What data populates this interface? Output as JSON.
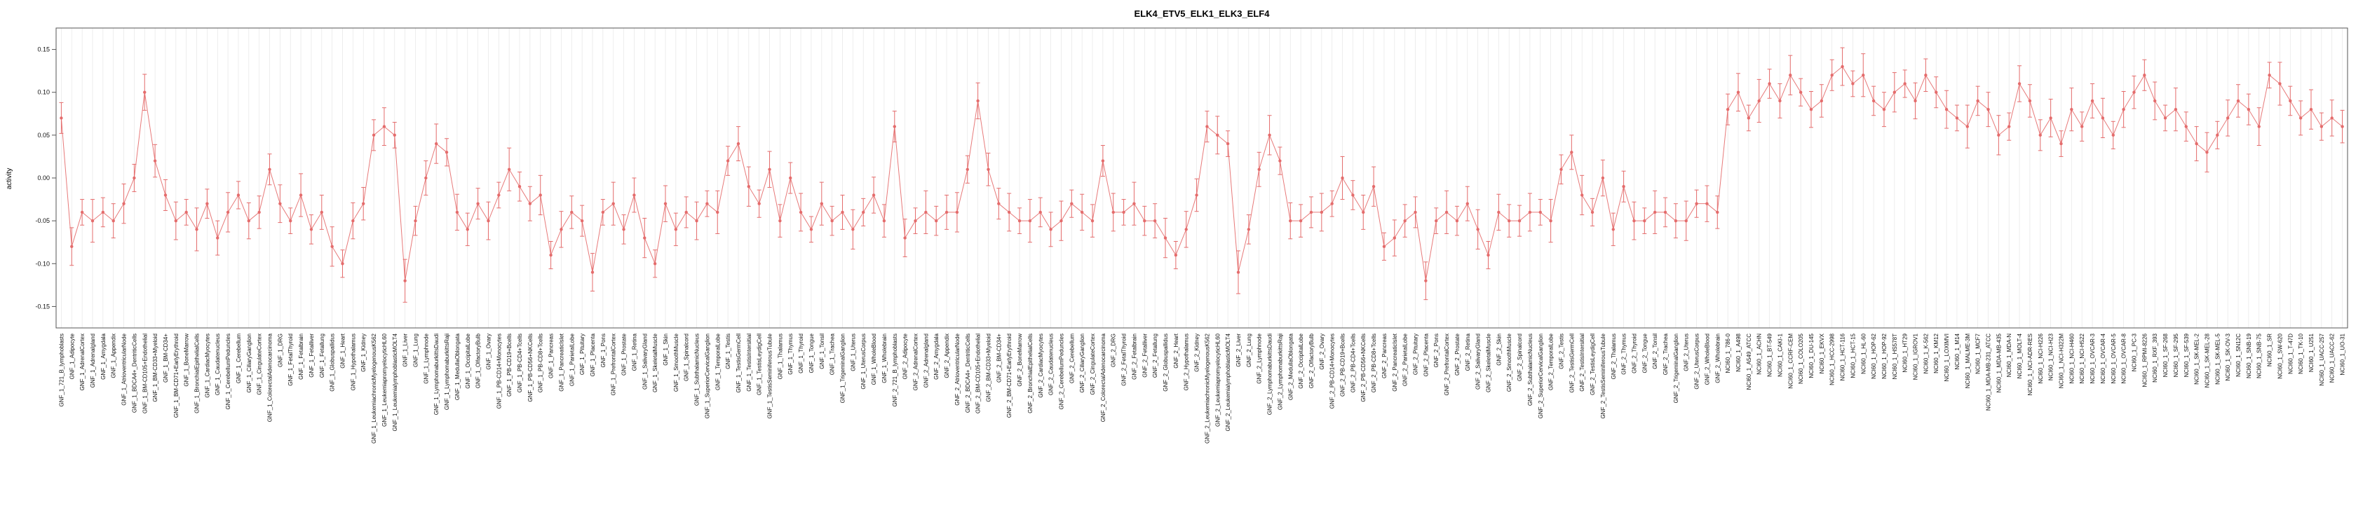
{
  "chart_data": {
    "type": "scatter",
    "title": "ELK4_ETV5_ELK1_ELK3_ELF4",
    "xlabel": "",
    "ylabel": "activity",
    "ylim": [
      -0.175,
      0.175
    ],
    "yticks": [
      -0.15,
      -0.1,
      -0.05,
      0.0,
      0.05,
      0.1,
      0.15
    ],
    "point_color": "#e46c6c",
    "grid_color": "#e6e6e6",
    "box_color": "#555555",
    "grid": true,
    "legend": "none",
    "categories": [
      "GNF_1_721_B_lymphoblasts",
      "GNF_1_Adipocyte",
      "GNF_1_AdrenalCortex",
      "GNF_1_Adrenalgland",
      "GNF_1_Amygdala",
      "GNF_1_Appendix",
      "GNF_1_AtrioventricularNode",
      "GNF_1_BDCA4+_DentriticCells",
      "GNF_1_BM-CD105+Endothelial",
      "GNF_1_BM-CD33+Myeloid",
      "GNF_1_BM-CD34+",
      "GNF_1_BM-CD71+EarlyErythroid",
      "GNF_1_BoneMarrow",
      "GNF_1_BronchialEpithelialCells",
      "GNF_1_CardiacMyocytes",
      "GNF_1_Caudatenucleus",
      "GNF_1_CerebellumPeduncles",
      "GNF_1_Cerebellum",
      "GNF_1_CiliaryGanglion",
      "GNF_1_CingulateCortex",
      "GNF_1_ColorectalAdenocarcinoma",
      "GNF_1_DRG",
      "GNF_1_FetalThyroid",
      "GNF_1_Fetalbrain",
      "GNF_1_Fetalliver",
      "GNF_1_Fetallung",
      "GNF_1_Globuspallidus",
      "GNF_1_Heart",
      "GNF_1_Hypothalamus",
      "GNF_1_Kidney",
      "GNF_1_LeukemiachronicMyelogenousK562",
      "GNF_1_LeukemiapromyelocyticHL60",
      "GNF_1_LeukemialymphoblasticMOLT4",
      "GNF_1_Liver",
      "GNF_1_Lung",
      "GNF_1_Lymphnode",
      "GNF_1_LymphomaburkittsDaudi",
      "GNF_1_LymphomaburkittsRaji",
      "GNF_1_MedullaOblongata",
      "GNF_1_OccipitalLobe",
      "GNF_1_OlfactoryBulb",
      "GNF_1_Ovary",
      "GNF_1_PB-CD14+Monocytes",
      "GNF_1_PB-CD19+Bcells",
      "GNF_1_PB-CD4+Tcells",
      "GNF_1_PB-CD56+NKCells",
      "GNF_1_PB-CD8+Tcells",
      "GNF_1_Pancreas",
      "GNF_1_PancreaticIslet",
      "GNF_1_ParietalLobe",
      "GNF_1_Pituitary",
      "GNF_1_Placenta",
      "GNF_1_Pons",
      "GNF_1_PrefrontalCortex",
      "GNF_1_Prostate",
      "GNF_1_Retina",
      "GNF_1_SalivaryGland",
      "GNF_1_SkeletalMuscle",
      "GNF_1_Skin",
      "GNF_1_SmoothMuscle",
      "GNF_1_Spinalcord",
      "GNF_1_SubthalamicNucleus",
      "GNF_1_SuperiorCervicalGanglion",
      "GNF_1_TemporalLobe",
      "GNF_1_Testis",
      "GNF_1_TestisGermCell",
      "GNF_1_TestisIntersitial",
      "GNF_1_TestisLeydigCell",
      "GNF_1_TestisSeminiferousTubule",
      "GNF_1_Thalamus",
      "GNF_1_Thymus",
      "GNF_1_Thyroid",
      "GNF_1_Tongue",
      "GNF_1_Tonsil",
      "GNF_1_Trachea",
      "GNF_1_TrigeminalGanglion",
      "GNF_1_Uterus",
      "GNF_1_UterusCorpus",
      "GNF_1_WholeBlood",
      "GNF_1_Wholebrain",
      "GNF_2_721_B_lymphoblasts",
      "GNF_2_Adipocyte",
      "GNF_2_AdrenalCortex",
      "GNF_2_Adrenalgland",
      "GNF_2_Amygdala",
      "GNF_2_Appendix",
      "GNF_2_AtrioventricularNode",
      "GNF_2_BDCA4+_DentriticCells",
      "GNF_2_BM-CD105+Endothelial",
      "GNF_2_BM-CD33+Myeloid",
      "GNF_2_BM-CD34+",
      "GNF_2_BM-CD71+EarlyErythroid",
      "GNF_2_BoneMarrow",
      "GNF_2_BronchialEpithelialCells",
      "GNF_2_CardiacMyocytes",
      "GNF_2_Caudatenucleus",
      "GNF_2_CerebellumPeduncles",
      "GNF_2_Cerebellum",
      "GNF_2_CiliaryGanglion",
      "GNF_2_CingulateCortex",
      "GNF_2_ColorectalAdenocarcinoma",
      "GNF_2_DRG",
      "GNF_2_FetalThyroid",
      "GNF_2_Fetalbrain",
      "GNF_2_Fetalliver",
      "GNF_2_Fetallung",
      "GNF_2_Globuspallidus",
      "GNF_2_Heart",
      "GNF_2_Hypothalamus",
      "GNF_2_Kidney",
      "GNF_2_LeukemiachronicMyelogenousK562",
      "GNF_2_LeukemiapromyelocyticHL60",
      "GNF_2_LeukemialymphoblasticMOLT4",
      "GNF_2_Liver",
      "GNF_2_Lung",
      "GNF_2_Lymphnode",
      "GNF_2_LymphomaburkittsDaudi",
      "GNF_2_LymphomaburkittsRaji",
      "GNF_2_MedullaOblongata",
      "GNF_2_OccipitalLobe",
      "GNF_2_OlfactoryBulb",
      "GNF_2_Ovary",
      "GNF_2_PB-CD14+Monocytes",
      "GNF_2_PB-CD19+Bcells",
      "GNF_2_PB-CD4+Tcells",
      "GNF_2_PB-CD56+NKCells",
      "GNF_2_PB-CD8+Tcells",
      "GNF_2_Pancreas",
      "GNF_2_PancreaticIslet",
      "GNF_2_ParietalLobe",
      "GNF_2_Pituitary",
      "GNF_2_Placenta",
      "GNF_2_Pons",
      "GNF_2_PrefrontalCortex",
      "GNF_2_Prostate",
      "GNF_2_Retina",
      "GNF_2_SalivaryGland",
      "GNF_2_SkeletalMuscle",
      "GNF_2_Skin",
      "GNF_2_SmoothMuscle",
      "GNF_2_Spinalcord",
      "GNF_2_SubthalamicNucleus",
      "GNF_2_SuperiorCervicalGanglion",
      "GNF_2_TemporalLobe",
      "GNF_2_Testis",
      "GNF_2_TestisGermCell",
      "GNF_2_TestisIntersitial",
      "GNF_2_TestisLeydigCell",
      "GNF_2_TestisSeminiferousTubule",
      "GNF_2_Thalamus",
      "GNF_2_Thymus",
      "GNF_2_Thyroid",
      "GNF_2_Tongue",
      "GNF_2_Tonsil",
      "GNF_2_Trachea",
      "GNF_2_TrigeminalGanglion",
      "GNF_2_Uterus",
      "GNF_2_UterusCorpus",
      "GNF_2_WholeBlood",
      "GNF_2_Wholebrain",
      "NCI60_1_786-0",
      "NCI60_1_A498",
      "NCI60_1_A549_ATCC",
      "NCI60_1_ACHN",
      "NCI60_1_BT-549",
      "NCI60_1_CAKI-1",
      "NCI60_1_CCRF-CEM",
      "NCI60_1_COLO205",
      "NCI60_1_DU-145",
      "NCI60_1_EKVX",
      "NCI60_1_HCC-2998",
      "NCI60_1_HCT-116",
      "NCI60_1_HCT-15",
      "NCI60_1_HL-60",
      "NCI60_1_HOP-62",
      "NCI60_1_HOP-92",
      "NCI60_1_HS578T",
      "NCI60_1_HT29",
      "NCI60_1_IGROV1",
      "NCI60_1_K-562",
      "NCI60_1_KM12",
      "NCI60_1_LOXIMVI",
      "NCI60_1_M14",
      "NCI60_1_MALME-3M",
      "NCI60_1_MCF7",
      "NCI60_1_MDA-MB-231_ATCC",
      "NCI60_1_MDA-MB-435",
      "NCI60_1_MDA-N",
      "NCI60_1_MOLT-4",
      "NCI60_1_NCI-ADR-RES",
      "NCI60_1_NCI-H226",
      "NCI60_1_NCI-H23",
      "NCI60_1_NCI-H322M",
      "NCI60_1_NCI-H460",
      "NCI60_1_NCI-H522",
      "NCI60_1_OVCAR-3",
      "NCI60_1_OVCAR-4",
      "NCI60_1_OVCAR-5",
      "NCI60_1_OVCAR-8",
      "NCI60_1_PC-3",
      "NCI60_1_RPMI-8226",
      "NCI60_1_RXF_393",
      "NCI60_1_SF-268",
      "NCI60_1_SF-295",
      "NCI60_1_SF-539",
      "NCI60_1_SK-MEL-2",
      "NCI60_1_SK-MEL-28",
      "NCI60_1_SK-MEL-5",
      "NCI60_1_SK-OV-3",
      "NCI60_1_SN12C",
      "NCI60_1_SNB-19",
      "NCI60_1_SNB-75",
      "NCI60_1_SR",
      "NCI60_1_SW-620",
      "NCI60_1_T-47D",
      "NCI60_1_TK-10",
      "NCI60_1_U251",
      "NCI60_1_UACC-257",
      "NCI60_1_UACC-62",
      "NCI60_1_UO-31"
    ],
    "values": [
      0.07,
      -0.08,
      -0.04,
      -0.05,
      -0.04,
      -0.05,
      -0.03,
      0,
      0.1,
      0.02,
      -0.02,
      -0.05,
      -0.04,
      -0.06,
      -0.03,
      -0.07,
      -0.04,
      -0.02,
      -0.05,
      -0.04,
      0.01,
      -0.03,
      -0.05,
      -0.02,
      -0.06,
      -0.04,
      -0.08,
      -0.1,
      -0.05,
      -0.03,
      0.05,
      0.06,
      0.05,
      -0.12,
      -0.05,
      0,
      0.04,
      0.03,
      -0.04,
      -0.06,
      -0.03,
      -0.05,
      -0.02,
      0.01,
      -0.01,
      -0.03,
      -0.02,
      -0.09,
      -0.06,
      -0.04,
      -0.05,
      -0.11,
      -0.04,
      -0.03,
      -0.06,
      -0.02,
      -0.07,
      -0.1,
      -0.03,
      -0.06,
      -0.04,
      -0.05,
      -0.03,
      -0.04,
      0.02,
      0.04,
      -0.01,
      -0.03,
      0.01,
      -0.05,
      0,
      -0.04,
      -0.06,
      -0.03,
      -0.05,
      -0.04,
      -0.06,
      -0.04,
      -0.02,
      -0.05,
      0.06,
      -0.07,
      -0.05,
      -0.04,
      -0.05,
      -0.04,
      -0.04,
      0.01,
      0.09,
      0.01,
      -0.03,
      -0.04,
      -0.05,
      -0.05,
      -0.04,
      -0.06,
      -0.05,
      -0.03,
      -0.04,
      -0.05,
      0.02,
      -0.04,
      -0.04,
      -0.03,
      -0.05,
      -0.05,
      -0.07,
      -0.09,
      -0.06,
      -0.02,
      0.06,
      0.05,
      0.04,
      -0.11,
      -0.06,
      0.01,
      0.05,
      0.02,
      -0.05,
      -0.05,
      -0.04,
      -0.04,
      -0.03,
      0,
      -0.02,
      -0.04,
      -0.01,
      -0.08,
      -0.07,
      -0.05,
      -0.04,
      -0.12,
      -0.05,
      -0.04,
      -0.05,
      -0.03,
      -0.06,
      -0.09,
      -0.04,
      -0.05,
      -0.05,
      -0.04,
      -0.04,
      -0.05,
      0.01,
      0.03,
      -0.02,
      -0.04,
      0,
      -0.06,
      -0.01,
      -0.05,
      -0.05,
      -0.04,
      -0.04,
      -0.05,
      -0.05,
      -0.03,
      -0.03,
      -0.04,
      0.08,
      0.1,
      0.07,
      0.09,
      0.11,
      0.09,
      0.12,
      0.1,
      0.08,
      0.09,
      0.12,
      0.13,
      0.11,
      0.12,
      0.09,
      0.08,
      0.1,
      0.11,
      0.09,
      0.12,
      0.1,
      0.08,
      0.07,
      0.06,
      0.09,
      0.08,
      0.05,
      0.06,
      0.11,
      0.09,
      0.05,
      0.07,
      0.04,
      0.08,
      0.06,
      0.09,
      0.07,
      0.05,
      0.08,
      0.1,
      0.12,
      0.09,
      0.07,
      0.08,
      0.06,
      0.04,
      0.03,
      0.05,
      0.07,
      0.09,
      0.08,
      0.06,
      0.12,
      0.11,
      0.09,
      0.07,
      0.08,
      0.06,
      0.07,
      0.06
    ],
    "errors": [
      0.018,
      0.022,
      0.015,
      0.025,
      0.017,
      0.02,
      0.023,
      0.016,
      0.021,
      0.019,
      0.018,
      0.022,
      0.015,
      0.025,
      0.017,
      0.02,
      0.023,
      0.016,
      0.021,
      0.019,
      0.018,
      0.022,
      0.015,
      0.025,
      0.017,
      0.02,
      0.023,
      0.016,
      0.021,
      0.019,
      0.018,
      0.022,
      0.015,
      0.025,
      0.017,
      0.02,
      0.023,
      0.016,
      0.021,
      0.019,
      0.018,
      0.022,
      0.015,
      0.025,
      0.017,
      0.02,
      0.023,
      0.016,
      0.021,
      0.019,
      0.018,
      0.022,
      0.015,
      0.025,
      0.017,
      0.02,
      0.023,
      0.016,
      0.021,
      0.019,
      0.018,
      0.022,
      0.015,
      0.025,
      0.017,
      0.02,
      0.023,
      0.016,
      0.021,
      0.019,
      0.018,
      0.022,
      0.015,
      0.025,
      0.017,
      0.02,
      0.023,
      0.016,
      0.021,
      0.019,
      0.018,
      0.022,
      0.015,
      0.025,
      0.017,
      0.02,
      0.023,
      0.016,
      0.021,
      0.019,
      0.018,
      0.022,
      0.015,
      0.025,
      0.017,
      0.02,
      0.023,
      0.016,
      0.021,
      0.019,
      0.018,
      0.022,
      0.015,
      0.025,
      0.017,
      0.02,
      0.023,
      0.016,
      0.021,
      0.019,
      0.018,
      0.022,
      0.015,
      0.025,
      0.017,
      0.02,
      0.023,
      0.016,
      0.021,
      0.019,
      0.018,
      0.022,
      0.015,
      0.025,
      0.017,
      0.02,
      0.023,
      0.016,
      0.021,
      0.019,
      0.018,
      0.022,
      0.015,
      0.025,
      0.017,
      0.02,
      0.023,
      0.016,
      0.021,
      0.019,
      0.018,
      0.022,
      0.015,
      0.025,
      0.017,
      0.02,
      0.023,
      0.016,
      0.021,
      0.019,
      0.018,
      0.022,
      0.015,
      0.025,
      0.017,
      0.02,
      0.023,
      0.016,
      0.021,
      0.019,
      0.018,
      0.022,
      0.015,
      0.025,
      0.017,
      0.02,
      0.023,
      0.016,
      0.021,
      0.019,
      0.018,
      0.022,
      0.015,
      0.025,
      0.017,
      0.02,
      0.023,
      0.016,
      0.021,
      0.019,
      0.018,
      0.022,
      0.015,
      0.025,
      0.017,
      0.02,
      0.023,
      0.016,
      0.021,
      0.019,
      0.018,
      0.022,
      0.015,
      0.025,
      0.017,
      0.02,
      0.023,
      0.016,
      0.021,
      0.019,
      0.018,
      0.022,
      0.015,
      0.025,
      0.017,
      0.02,
      0.023,
      0.016,
      0.021,
      0.019,
      0.018,
      0.022,
      0.015,
      0.025,
      0.017,
      0.02,
      0.023,
      0.016,
      0.021,
      0.019
    ]
  }
}
